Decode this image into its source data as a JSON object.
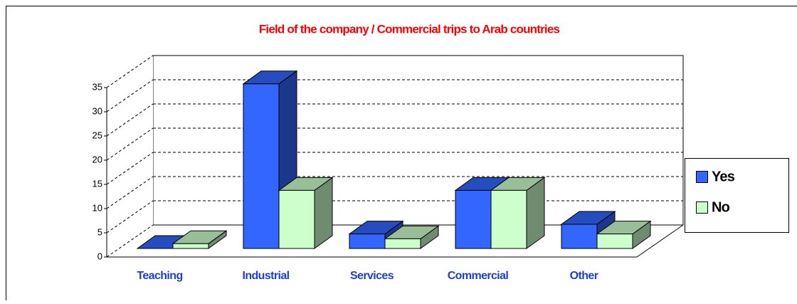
{
  "chart_data": {
    "type": "bar3d",
    "title": "Field of the company / Commercial trips to Arab countries",
    "categories": [
      "Teaching",
      "Industrial",
      "Services",
      "Commercial",
      "Other"
    ],
    "series": [
      {
        "name": "Yes",
        "color": "#3366ff",
        "values": [
          0,
          34,
          3,
          12,
          5
        ]
      },
      {
        "name": "No",
        "color": "#ccffcc",
        "values": [
          1,
          12,
          2,
          12,
          3
        ]
      }
    ],
    "ylim": [
      0,
      35
    ],
    "yticks": [
      0,
      5,
      10,
      15,
      20,
      25,
      30,
      35
    ],
    "grid": true
  }
}
